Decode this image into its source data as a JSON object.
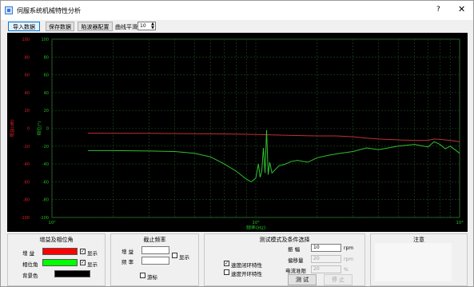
{
  "window": {
    "title": "伺服系统机械特性分析",
    "help": "?",
    "close": "✕"
  },
  "toolbar": {
    "import_label": "导入数据",
    "save_label": "保存数据",
    "filter_label": "陷波器配置",
    "smooth_label": "曲线平滑",
    "smooth_value": "10"
  },
  "chart_data": {
    "type": "line",
    "xscale": "log",
    "xlim": [
      100,
      10000
    ],
    "x_ticks": [
      "10²",
      "10³",
      "10⁴"
    ],
    "xlabel": "频率(Hz)",
    "left_axis": {
      "label": "增益(dB)",
      "ylim": [
        -100,
        100
      ],
      "ticks": [
        100,
        80,
        60,
        40,
        20,
        0,
        -20,
        -40,
        -60,
        -80,
        -100
      ],
      "color": "#e02020"
    },
    "right_axis": {
      "label": "相位(°)",
      "ylim": [
        -100,
        100
      ],
      "ticks": [
        100,
        80,
        60,
        40,
        20,
        0,
        -20,
        -40,
        -60,
        -80,
        -100
      ],
      "color": "#20c020"
    },
    "grid": true,
    "background": "#000000",
    "series": [
      {
        "color": "#c03030",
        "x": [
          150,
          200,
          300,
          500,
          800,
          1000,
          1500,
          2000,
          2500,
          3000,
          3500,
          4000,
          5000,
          6000,
          7000,
          7500,
          8000,
          9000,
          10000
        ],
        "y": [
          -5.5,
          -5.6,
          -5.6,
          -6.0,
          -6.5,
          -7,
          -8,
          -8.5,
          -8.5,
          -9.5,
          -11,
          -12,
          -13,
          -13.5,
          -13.5,
          -12,
          -12.5,
          -13.5,
          -15
        ]
      },
      {
        "color": "#30c030",
        "x": [
          150,
          200,
          300,
          400,
          500,
          600,
          700,
          800,
          900,
          950,
          1000,
          1030,
          1050,
          1070,
          1090,
          1110,
          1130,
          1150,
          1170,
          1200,
          1300,
          1400,
          1500,
          1600,
          1800,
          2000,
          2300,
          2600,
          3000,
          3500,
          4000,
          5000,
          6000,
          7000,
          7500,
          8000,
          8500,
          9000,
          9500,
          10000
        ],
        "y": [
          -25,
          -25,
          -25.5,
          -26,
          -28,
          -32,
          -40,
          -48,
          -57,
          -60,
          -56,
          -40,
          -55,
          -48,
          -22,
          -50,
          -2,
          -52,
          -38,
          -50,
          -42,
          -40,
          -37,
          -36,
          -38,
          -33,
          -30,
          -28,
          -26,
          -22,
          -24,
          -20,
          -18,
          -21,
          -15,
          -18,
          -23,
          -20,
          -24,
          -28
        ]
      }
    ]
  },
  "gain_phase_panel": {
    "title": "增益及相位角",
    "gain_label": "增 益",
    "gain_color": "#ff0000",
    "phase_label": "相位角",
    "phase_color": "#00ff00",
    "bg_label": "背景色",
    "bg_color": "#000000",
    "show_label": "显示",
    "check": "✓"
  },
  "cutoff_panel": {
    "title": "截止频率",
    "gain_label": "增 益",
    "freq_label": "频 率",
    "show_label": "显示",
    "cursor_label": "游标"
  },
  "test_panel": {
    "title": "测试模式及条件选择",
    "amplitude_label": "振 幅",
    "amplitude_value": "10",
    "amplitude_unit": "rpm",
    "offset_label": "偏移量",
    "offset_value": "20",
    "offset_unit": "rpm",
    "current_label": "电流准限",
    "current_value": "20",
    "current_unit": "%",
    "closed_loop_label": "速度闭环特性",
    "open_loop_label": "速度开环特性",
    "check": "✓",
    "test_button": "测 试",
    "stop_button": "停 止"
  },
  "notes_panel": {
    "title": "注意"
  }
}
